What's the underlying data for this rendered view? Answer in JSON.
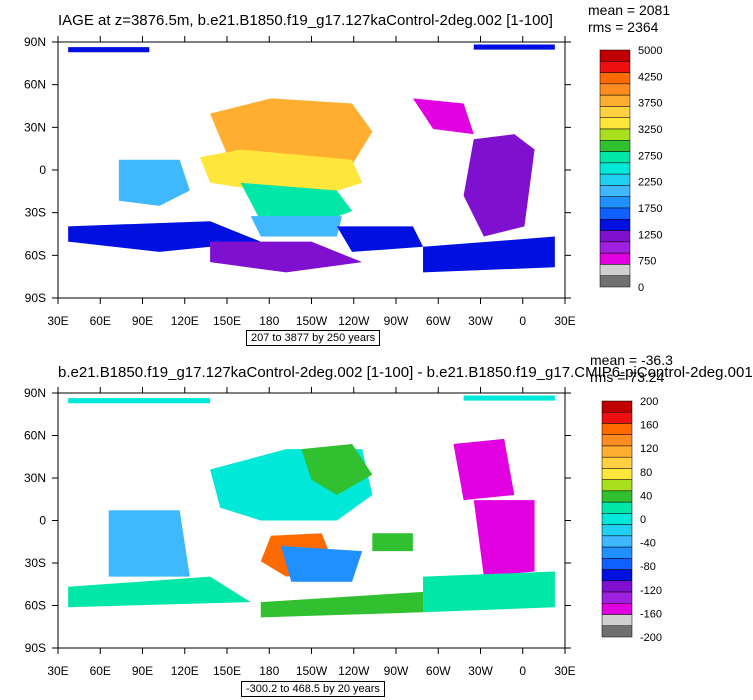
{
  "chart_data": [
    {
      "type": "heatmap",
      "title": "IAGE at z=3876.5m, b.e21.B1850.f19_g17.127kaControl-2deg.002 [1-100]",
      "stats": {
        "mean": "mean = 2081",
        "rms": "rms = 2364"
      },
      "x_ticks": [
        "30E",
        "60E",
        "90E",
        "120E",
        "150E",
        "180",
        "150W",
        "120W",
        "90W",
        "60W",
        "30W",
        "0",
        "30E"
      ],
      "y_ticks": [
        "90N",
        "60N",
        "30N",
        "0",
        "30S",
        "60S",
        "90S"
      ],
      "range_label": "207 to 3877 by 250 years",
      "colorbar": {
        "labels": [
          "5000",
          "4250",
          "3750",
          "3250",
          "2750",
          "2250",
          "1750",
          "1250",
          "750",
          "0"
        ],
        "colors": [
          "#c00000",
          "#ee1010",
          "#ff6a00",
          "#ff8c20",
          "#ffae30",
          "#ffd040",
          "#ffe63a",
          "#a8e020",
          "#30c030",
          "#00e7a7",
          "#00e8d8",
          "#20d0f0",
          "#40b8ff",
          "#2090ff",
          "#1060ff",
          "#0010e0",
          "#8010d0",
          "#a020e0",
          "#e000e0",
          "#d0d0d0",
          "#707070"
        ]
      }
    },
    {
      "type": "heatmap",
      "title": "b.e21.B1850.f19_g17.127kaControl-2deg.002 [1-100] - b.e21.B1850.f19_g17.CMIP6-piControl-2deg.001",
      "stats": {
        "mean": "mean = -36.3",
        "rms": "rms = 73.24"
      },
      "x_ticks": [
        "30E",
        "60E",
        "90E",
        "120E",
        "150E",
        "180",
        "150W",
        "120W",
        "90W",
        "60W",
        "30W",
        "0",
        "30E"
      ],
      "y_ticks": [
        "90N",
        "60N",
        "30N",
        "0",
        "30S",
        "60S",
        "90S"
      ],
      "range_label": "-300.2 to 468.5 by 20 years",
      "colorbar": {
        "labels": [
          "200",
          "160",
          "120",
          "80",
          "40",
          "0",
          "-40",
          "-80",
          "-120",
          "-160",
          "-200"
        ],
        "colors": [
          "#c00000",
          "#ee1010",
          "#ff6a00",
          "#ff8c20",
          "#ffae30",
          "#ffd040",
          "#ffe63a",
          "#a8e020",
          "#30c030",
          "#00e7a7",
          "#00e8d8",
          "#20d0f0",
          "#40b8ff",
          "#2090ff",
          "#1060ff",
          "#0010e0",
          "#8010d0",
          "#a020e0",
          "#e000e0",
          "#d0d0d0",
          "#707070"
        ]
      }
    }
  ]
}
